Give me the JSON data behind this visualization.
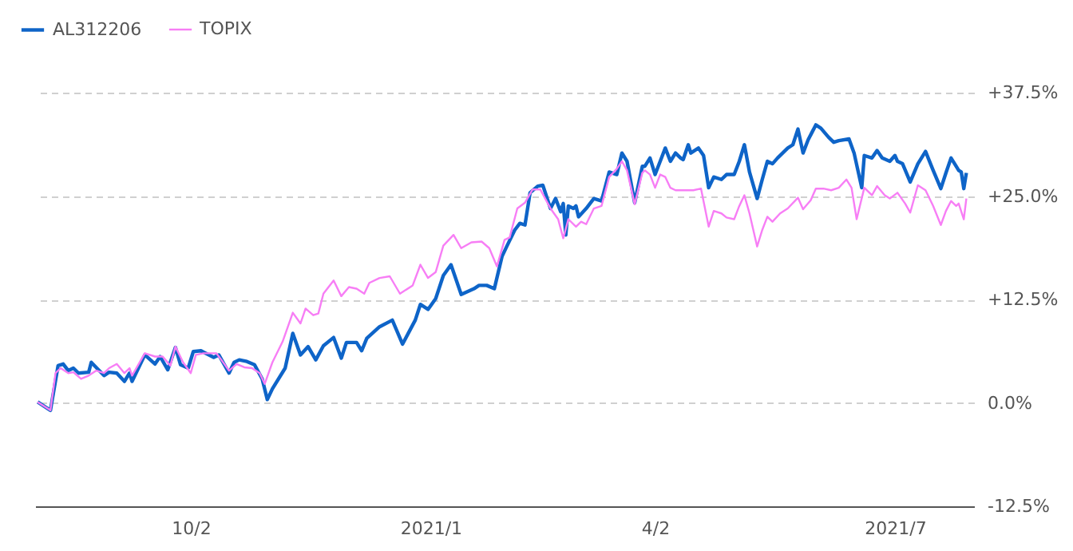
{
  "chart_data": {
    "type": "line",
    "xlim": [
      "2020-08-02",
      "2021-08-05"
    ],
    "xticks": [
      {
        "value": "2020-10-02",
        "label": "10/2"
      },
      {
        "value": "2021-01-04",
        "label": "2021/1"
      },
      {
        "value": "2021-04-02",
        "label": "4/2"
      },
      {
        "value": "2021-07-05",
        "label": "2021/7"
      }
    ],
    "ylim": [
      -12.5,
      37.5
    ],
    "yticks": [
      {
        "value": -12.5,
        "label": "-12.5%"
      },
      {
        "value": 0,
        "label": "0.0%"
      },
      {
        "value": 12.5,
        "label": "+12.5%"
      },
      {
        "value": 25,
        "label": "+25.0%"
      },
      {
        "value": 37.5,
        "label": "+37.5%"
      }
    ],
    "grid": "y",
    "legend": "top left",
    "line_style": "solid",
    "marker": "none",
    "series": [
      {
        "name": "AL312206",
        "color": "#0e64c8",
        "x": [
          "2020-08-03",
          "2020-08-08",
          "2020-08-11",
          "2020-08-13",
          "2020-08-15",
          "2020-08-17",
          "2020-08-19",
          "2020-08-23",
          "2020-08-24",
          "2020-08-29",
          "2020-08-31",
          "2020-09-03",
          "2020-09-06",
          "2020-09-08",
          "2020-09-09",
          "2020-09-14",
          "2020-09-18",
          "2020-09-20",
          "2020-09-23",
          "2020-09-26",
          "2020-09-28",
          "2020-10-01",
          "2020-10-03",
          "2020-10-06",
          "2020-10-11",
          "2020-10-13",
          "2020-10-17",
          "2020-10-19",
          "2020-10-21",
          "2020-10-24",
          "2020-10-27",
          "2020-10-30",
          "2020-11-01",
          "2020-11-03",
          "2020-11-08",
          "2020-11-11",
          "2020-11-14",
          "2020-11-17",
          "2020-11-20",
          "2020-11-23",
          "2020-11-27",
          "2020-11-30",
          "2020-12-02",
          "2020-12-06",
          "2020-12-08",
          "2020-12-10",
          "2020-12-15",
          "2020-12-20",
          "2020-12-24",
          "2020-12-29",
          "2020-12-31",
          "2021-01-03",
          "2021-01-06",
          "2021-01-09",
          "2021-01-12",
          "2021-01-16",
          "2021-01-21",
          "2021-01-23",
          "2021-01-26",
          "2021-01-29",
          "2021-02-01",
          "2021-02-03",
          "2021-02-06",
          "2021-02-08",
          "2021-02-10",
          "2021-02-12",
          "2021-02-15",
          "2021-02-17",
          "2021-02-20",
          "2021-02-22",
          "2021-02-24",
          "2021-02-25",
          "2021-02-26",
          "2021-02-27",
          "2021-03-01",
          "2021-03-02",
          "2021-03-03",
          "2021-03-06",
          "2021-03-09",
          "2021-03-12",
          "2021-03-15",
          "2021-03-18",
          "2021-03-20",
          "2021-03-22",
          "2021-03-25",
          "2021-03-28",
          "2021-03-29",
          "2021-03-31",
          "2021-04-02",
          "2021-04-04",
          "2021-04-06",
          "2021-04-08",
          "2021-04-10",
          "2021-04-12",
          "2021-04-13",
          "2021-04-15",
          "2021-04-16",
          "2021-04-19",
          "2021-04-21",
          "2021-04-23",
          "2021-04-25",
          "2021-04-28",
          "2021-04-30",
          "2021-05-03",
          "2021-05-05",
          "2021-05-07",
          "2021-05-09",
          "2021-05-12",
          "2021-05-14",
          "2021-05-16",
          "2021-05-18",
          "2021-05-20",
          "2021-05-24",
          "2021-05-26",
          "2021-05-28",
          "2021-05-30",
          "2021-06-01",
          "2021-06-04",
          "2021-06-06",
          "2021-06-09",
          "2021-06-11",
          "2021-06-13",
          "2021-06-17",
          "2021-06-19",
          "2021-06-22",
          "2021-06-23",
          "2021-06-26",
          "2021-06-28",
          "2021-06-30",
          "2021-07-03",
          "2021-07-05",
          "2021-07-06",
          "2021-07-08",
          "2021-07-11",
          "2021-07-14",
          "2021-07-17",
          "2021-07-20",
          "2021-07-23",
          "2021-07-25",
          "2021-07-27",
          "2021-07-29",
          "2021-07-30",
          "2021-07-31",
          "2021-08-01",
          "2021-08-02"
        ],
        "values": [
          0.1,
          -0.9,
          4.5,
          4.7,
          3.9,
          4.2,
          3.6,
          3.7,
          4.9,
          3.3,
          3.7,
          3.6,
          2.6,
          3.6,
          2.6,
          5.8,
          4.7,
          5.6,
          4.0,
          6.7,
          4.6,
          4.2,
          6.2,
          6.3,
          5.5,
          5.8,
          3.6,
          4.9,
          5.2,
          5.0,
          4.6,
          2.9,
          0.4,
          1.7,
          4.2,
          8.4,
          5.8,
          6.8,
          5.2,
          6.9,
          7.9,
          5.4,
          7.3,
          7.3,
          6.3,
          7.8,
          9.2,
          10.0,
          7.1,
          10.0,
          11.9,
          11.3,
          12.6,
          15.4,
          16.7,
          13.1,
          13.8,
          14.2,
          14.2,
          13.8,
          17.7,
          19.0,
          20.9,
          21.7,
          21.5,
          25.4,
          26.2,
          26.3,
          23.5,
          24.7,
          23.1,
          24.1,
          20.3,
          23.8,
          23.5,
          23.8,
          22.5,
          23.5,
          24.7,
          24.4,
          27.9,
          27.6,
          30.2,
          29.2,
          24.2,
          28.6,
          28.6,
          29.6,
          27.6,
          29.2,
          30.8,
          29.2,
          30.2,
          29.6,
          29.4,
          31.2,
          30.2,
          30.8,
          29.9,
          26.0,
          27.3,
          27.0,
          27.6,
          27.6,
          29.2,
          31.2,
          27.9,
          24.7,
          27.0,
          29.2,
          28.9,
          29.6,
          30.8,
          31.2,
          33.1,
          30.2,
          31.8,
          33.6,
          33.2,
          32.1,
          31.5,
          31.7,
          31.9,
          30.2,
          26.0,
          29.9,
          29.6,
          30.5,
          29.6,
          29.2,
          29.9,
          29.2,
          28.9,
          26.7,
          28.9,
          30.4,
          28.1,
          25.9,
          27.8,
          29.6,
          28.6,
          28.1,
          27.9,
          25.9,
          27.8
        ]
      },
      {
        "name": "TOPIX",
        "color": "#f77ef5",
        "x": [
          "2020-08-03",
          "2020-08-08",
          "2020-08-10",
          "2020-08-12",
          "2020-08-15",
          "2020-08-17",
          "2020-08-20",
          "2020-08-23",
          "2020-08-26",
          "2020-08-29",
          "2020-08-31",
          "2020-09-03",
          "2020-09-06",
          "2020-09-08",
          "2020-09-09",
          "2020-09-14",
          "2020-09-18",
          "2020-09-21",
          "2020-09-24",
          "2020-09-26",
          "2020-09-29",
          "2020-10-02",
          "2020-10-04",
          "2020-10-07",
          "2020-10-12",
          "2020-10-14",
          "2020-10-17",
          "2020-10-20",
          "2020-10-23",
          "2020-10-26",
          "2020-10-29",
          "2020-10-31",
          "2020-11-03",
          "2020-11-07",
          "2020-11-11",
          "2020-11-14",
          "2020-11-16",
          "2020-11-19",
          "2020-11-21",
          "2020-11-23",
          "2020-11-27",
          "2020-11-30",
          "2020-12-03",
          "2020-12-06",
          "2020-12-09",
          "2020-12-11",
          "2020-12-15",
          "2020-12-19",
          "2020-12-23",
          "2020-12-28",
          "2020-12-31",
          "2021-01-03",
          "2021-01-06",
          "2021-01-09",
          "2021-01-13",
          "2021-01-16",
          "2021-01-20",
          "2021-01-24",
          "2021-01-27",
          "2021-01-30",
          "2021-02-02",
          "2021-02-04",
          "2021-02-07",
          "2021-02-10",
          "2021-02-13",
          "2021-02-16",
          "2021-02-20",
          "2021-02-23",
          "2021-02-25",
          "2021-02-27",
          "2021-03-02",
          "2021-03-04",
          "2021-03-06",
          "2021-03-09",
          "2021-03-12",
          "2021-03-15",
          "2021-03-18",
          "2021-03-20",
          "2021-03-22",
          "2021-03-25",
          "2021-03-28",
          "2021-03-29",
          "2021-03-31",
          "2021-04-02",
          "2021-04-04",
          "2021-04-06",
          "2021-04-08",
          "2021-04-10",
          "2021-04-13",
          "2021-04-15",
          "2021-04-17",
          "2021-04-20",
          "2021-04-23",
          "2021-04-25",
          "2021-04-28",
          "2021-04-30",
          "2021-05-03",
          "2021-05-05",
          "2021-05-07",
          "2021-05-09",
          "2021-05-12",
          "2021-05-14",
          "2021-05-16",
          "2021-05-18",
          "2021-05-21",
          "2021-05-24",
          "2021-05-28",
          "2021-05-30",
          "2021-06-02",
          "2021-06-04",
          "2021-06-07",
          "2021-06-10",
          "2021-06-13",
          "2021-06-16",
          "2021-06-18",
          "2021-06-20",
          "2021-06-23",
          "2021-06-26",
          "2021-06-28",
          "2021-07-01",
          "2021-07-03",
          "2021-07-06",
          "2021-07-09",
          "2021-07-11",
          "2021-07-14",
          "2021-07-17",
          "2021-07-20",
          "2021-07-23",
          "2021-07-25",
          "2021-07-27",
          "2021-07-29",
          "2021-07-30",
          "2021-08-01",
          "2021-08-02"
        ],
        "values": [
          0.1,
          -0.9,
          3.6,
          4.2,
          3.6,
          3.7,
          2.9,
          3.3,
          3.9,
          3.6,
          4.2,
          4.7,
          3.6,
          4.2,
          3.3,
          6.0,
          5.6,
          5.6,
          4.5,
          6.8,
          4.9,
          3.6,
          5.8,
          6.0,
          6.0,
          5.2,
          3.9,
          4.7,
          4.3,
          4.2,
          3.6,
          2.3,
          4.9,
          7.4,
          10.9,
          9.6,
          11.4,
          10.6,
          10.8,
          13.2,
          14.8,
          12.9,
          14.0,
          13.8,
          13.2,
          14.5,
          15.1,
          15.3,
          13.2,
          14.2,
          16.7,
          15.1,
          15.8,
          19.0,
          20.3,
          18.7,
          19.4,
          19.5,
          18.7,
          16.5,
          19.7,
          20.0,
          23.5,
          24.2,
          25.8,
          25.8,
          23.5,
          22.2,
          19.9,
          22.2,
          21.3,
          21.9,
          21.6,
          23.5,
          23.8,
          27.3,
          28.3,
          29.2,
          28.1,
          24.0,
          27.8,
          28.1,
          27.6,
          26.0,
          27.6,
          27.3,
          26.0,
          25.7,
          25.7,
          25.7,
          25.7,
          25.9,
          21.3,
          23.2,
          22.9,
          22.4,
          22.2,
          23.8,
          25.1,
          22.9,
          18.9,
          20.9,
          22.5,
          21.9,
          22.9,
          23.5,
          24.8,
          23.4,
          24.5,
          25.9,
          25.9,
          25.7,
          26.0,
          27.0,
          26.0,
          22.2,
          26.0,
          25.1,
          26.2,
          25.1,
          24.7,
          25.4,
          24.1,
          23.0,
          26.3,
          25.7,
          23.8,
          21.5,
          23.2,
          24.4,
          23.8,
          24.1,
          22.2,
          24.7
        ]
      }
    ]
  }
}
